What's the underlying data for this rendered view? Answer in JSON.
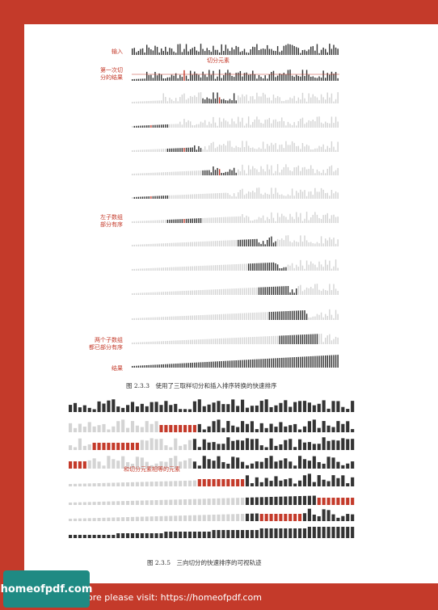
{
  "figure1": {
    "labels": {
      "input": "输入",
      "first_partition": "第一次切\n分的结果",
      "left_sorted": "左子数组\n部分有序",
      "both_sorted": "两个子数组\n都已部分有序",
      "result": "结果"
    },
    "pivot_annotation": "切分元素",
    "caption": "图 2.3.3　使用了三取样切分和插入排序转换的快速排序"
  },
  "figure2": {
    "annotation": "和切分元素相等的元素",
    "caption": "图 2.3.5　三向切分的快速排序的可视轨迹"
  },
  "footer": {
    "text": "ore please visit: https://homeofpdf.com",
    "badge": "homeofpdf.com"
  },
  "colors": {
    "accent": "#c43a2a",
    "dark_bar": "#333333",
    "light_bar": "#d4d4d4",
    "badge": "#1f8a83"
  }
}
